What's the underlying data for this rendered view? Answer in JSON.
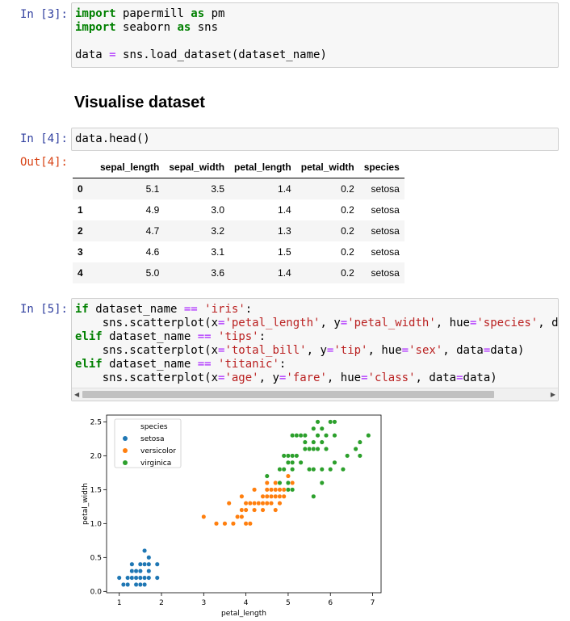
{
  "cells": {
    "c3": {
      "prompt": "In [3]:",
      "lines": [
        [
          {
            "t": "import",
            "c": "kw"
          },
          {
            "t": " papermill "
          },
          {
            "t": "as",
            "c": "kw"
          },
          {
            "t": " pm"
          }
        ],
        [
          {
            "t": "import",
            "c": "kw"
          },
          {
            "t": " seaborn "
          },
          {
            "t": "as",
            "c": "kw"
          },
          {
            "t": " sns"
          }
        ],
        [],
        [
          {
            "t": "data "
          },
          {
            "t": "=",
            "c": "eq"
          },
          {
            "t": " sns.load_dataset(dataset_name)"
          }
        ]
      ]
    },
    "heading": "Visualise dataset",
    "c4": {
      "prompt": "In [4]:",
      "out_prompt": "Out[4]:",
      "lines": [
        [
          {
            "t": "data.head()"
          }
        ]
      ]
    },
    "c5": {
      "prompt": "In [5]:",
      "lines": [
        [
          {
            "t": "if",
            "c": "kw"
          },
          {
            "t": " dataset_name "
          },
          {
            "t": "==",
            "c": "eq"
          },
          {
            "t": " "
          },
          {
            "t": "'iris'",
            "c": "str"
          },
          {
            "t": ":"
          }
        ],
        [
          {
            "t": "    sns.scatterplot(x"
          },
          {
            "t": "=",
            "c": "eq"
          },
          {
            "t": "'petal_length'",
            "c": "str"
          },
          {
            "t": ", y"
          },
          {
            "t": "=",
            "c": "eq"
          },
          {
            "t": "'petal_width'",
            "c": "str"
          },
          {
            "t": ", hue"
          },
          {
            "t": "=",
            "c": "eq"
          },
          {
            "t": "'species'",
            "c": "str"
          },
          {
            "t": ", d"
          }
        ],
        [
          {
            "t": "elif",
            "c": "kw"
          },
          {
            "t": " dataset_name "
          },
          {
            "t": "==",
            "c": "eq"
          },
          {
            "t": " "
          },
          {
            "t": "'tips'",
            "c": "str"
          },
          {
            "t": ":"
          }
        ],
        [
          {
            "t": "    sns.scatterplot(x"
          },
          {
            "t": "=",
            "c": "eq"
          },
          {
            "t": "'total_bill'",
            "c": "str"
          },
          {
            "t": ", y"
          },
          {
            "t": "=",
            "c": "eq"
          },
          {
            "t": "'tip'",
            "c": "str"
          },
          {
            "t": ", hue"
          },
          {
            "t": "=",
            "c": "eq"
          },
          {
            "t": "'sex'",
            "c": "str"
          },
          {
            "t": ", data"
          },
          {
            "t": "=",
            "c": "eq"
          },
          {
            "t": "data)"
          }
        ],
        [
          {
            "t": "elif",
            "c": "kw"
          },
          {
            "t": " dataset_name "
          },
          {
            "t": "==",
            "c": "eq"
          },
          {
            "t": " "
          },
          {
            "t": "'titanic'",
            "c": "str"
          },
          {
            "t": ":"
          }
        ],
        [
          {
            "t": "    sns.scatterplot(x"
          },
          {
            "t": "=",
            "c": "eq"
          },
          {
            "t": "'age'",
            "c": "str"
          },
          {
            "t": ", y"
          },
          {
            "t": "=",
            "c": "eq"
          },
          {
            "t": "'fare'",
            "c": "str"
          },
          {
            "t": ", hue"
          },
          {
            "t": "=",
            "c": "eq"
          },
          {
            "t": "'class'",
            "c": "str"
          },
          {
            "t": ", data"
          },
          {
            "t": "=",
            "c": "eq"
          },
          {
            "t": "data)"
          }
        ]
      ]
    }
  },
  "table": {
    "columns": [
      "",
      "sepal_length",
      "sepal_width",
      "petal_length",
      "petal_width",
      "species"
    ],
    "rows": [
      [
        "0",
        "5.1",
        "3.5",
        "1.4",
        "0.2",
        "setosa"
      ],
      [
        "1",
        "4.9",
        "3.0",
        "1.4",
        "0.2",
        "setosa"
      ],
      [
        "2",
        "4.7",
        "3.2",
        "1.3",
        "0.2",
        "setosa"
      ],
      [
        "3",
        "4.6",
        "3.1",
        "1.5",
        "0.2",
        "setosa"
      ],
      [
        "4",
        "5.0",
        "3.6",
        "1.4",
        "0.2",
        "setosa"
      ]
    ]
  },
  "chart_data": {
    "type": "scatter",
    "xlabel": "petal_length",
    "ylabel": "petal_width",
    "xlim": [
      0.7,
      7.2
    ],
    "ylim": [
      -0.02,
      2.6
    ],
    "xticks": [
      "1",
      "2",
      "3",
      "4",
      "5",
      "6",
      "7"
    ],
    "yticks": [
      "0.0",
      "0.5",
      "1.0",
      "1.5",
      "2.0",
      "2.5"
    ],
    "legend": {
      "title": "species",
      "position": "top-left"
    },
    "series": [
      {
        "name": "setosa",
        "color": "#1f77b4",
        "points": [
          [
            1.0,
            0.2
          ],
          [
            1.1,
            0.1
          ],
          [
            1.2,
            0.2
          ],
          [
            1.3,
            0.2
          ],
          [
            1.3,
            0.3
          ],
          [
            1.3,
            0.4
          ],
          [
            1.4,
            0.1
          ],
          [
            1.4,
            0.2
          ],
          [
            1.4,
            0.3
          ],
          [
            1.5,
            0.1
          ],
          [
            1.5,
            0.2
          ],
          [
            1.5,
            0.4
          ],
          [
            1.6,
            0.2
          ],
          [
            1.6,
            0.4
          ],
          [
            1.6,
            0.6
          ],
          [
            1.7,
            0.2
          ],
          [
            1.7,
            0.3
          ],
          [
            1.7,
            0.4
          ],
          [
            1.7,
            0.5
          ],
          [
            1.9,
            0.2
          ],
          [
            1.9,
            0.4
          ],
          [
            1.6,
            0.1
          ],
          [
            1.5,
            0.3
          ],
          [
            1.2,
            0.1
          ]
        ]
      },
      {
        "name": "versicolor",
        "color": "#ff7f0e",
        "points": [
          [
            3.0,
            1.1
          ],
          [
            3.3,
            1.0
          ],
          [
            3.5,
            1.0
          ],
          [
            3.6,
            1.3
          ],
          [
            3.7,
            1.0
          ],
          [
            3.8,
            1.1
          ],
          [
            3.9,
            1.1
          ],
          [
            3.9,
            1.2
          ],
          [
            3.9,
            1.4
          ],
          [
            4.0,
            1.0
          ],
          [
            4.0,
            1.2
          ],
          [
            4.0,
            1.3
          ],
          [
            4.1,
            1.0
          ],
          [
            4.1,
            1.3
          ],
          [
            4.2,
            1.2
          ],
          [
            4.2,
            1.3
          ],
          [
            4.2,
            1.5
          ],
          [
            4.3,
            1.3
          ],
          [
            4.4,
            1.2
          ],
          [
            4.4,
            1.3
          ],
          [
            4.4,
            1.4
          ],
          [
            4.5,
            1.3
          ],
          [
            4.5,
            1.5
          ],
          [
            4.5,
            1.6
          ],
          [
            4.6,
            1.3
          ],
          [
            4.6,
            1.4
          ],
          [
            4.6,
            1.5
          ],
          [
            4.7,
            1.2
          ],
          [
            4.7,
            1.4
          ],
          [
            4.7,
            1.5
          ],
          [
            4.8,
            1.4
          ],
          [
            4.8,
            1.8
          ],
          [
            4.9,
            1.5
          ],
          [
            5.0,
            1.7
          ],
          [
            5.1,
            1.6
          ],
          [
            4.9,
            1.4
          ],
          [
            4.7,
            1.6
          ],
          [
            4.8,
            1.5
          ],
          [
            4.5,
            1.4
          ],
          [
            4.8,
            1.3
          ]
        ]
      },
      {
        "name": "virginica",
        "color": "#2ca02c",
        "points": [
          [
            4.5,
            1.7
          ],
          [
            4.8,
            1.8
          ],
          [
            4.9,
            1.8
          ],
          [
            4.9,
            2.0
          ],
          [
            5.0,
            1.5
          ],
          [
            5.0,
            1.9
          ],
          [
            5.0,
            2.0
          ],
          [
            5.1,
            1.5
          ],
          [
            5.1,
            1.8
          ],
          [
            5.1,
            1.9
          ],
          [
            5.1,
            2.0
          ],
          [
            5.1,
            2.3
          ],
          [
            5.2,
            2.0
          ],
          [
            5.2,
            2.3
          ],
          [
            5.3,
            1.9
          ],
          [
            5.3,
            2.3
          ],
          [
            5.4,
            2.1
          ],
          [
            5.4,
            2.3
          ],
          [
            5.5,
            1.8
          ],
          [
            5.5,
            2.1
          ],
          [
            5.6,
            1.4
          ],
          [
            5.6,
            1.8
          ],
          [
            5.6,
            2.1
          ],
          [
            5.6,
            2.2
          ],
          [
            5.6,
            2.4
          ],
          [
            5.7,
            2.1
          ],
          [
            5.7,
            2.3
          ],
          [
            5.7,
            2.5
          ],
          [
            5.8,
            1.6
          ],
          [
            5.8,
            1.8
          ],
          [
            5.8,
            2.2
          ],
          [
            5.9,
            2.1
          ],
          [
            5.9,
            2.3
          ],
          [
            6.0,
            1.8
          ],
          [
            6.0,
            2.5
          ],
          [
            6.1,
            1.9
          ],
          [
            6.1,
            2.3
          ],
          [
            6.1,
            2.5
          ],
          [
            6.3,
            1.8
          ],
          [
            6.4,
            2.0
          ],
          [
            6.6,
            2.1
          ],
          [
            6.7,
            2.0
          ],
          [
            6.7,
            2.2
          ],
          [
            6.9,
            2.3
          ],
          [
            5.4,
            2.2
          ],
          [
            5.8,
            2.4
          ],
          [
            4.8,
            1.6
          ],
          [
            5.0,
            1.6
          ]
        ]
      }
    ]
  }
}
